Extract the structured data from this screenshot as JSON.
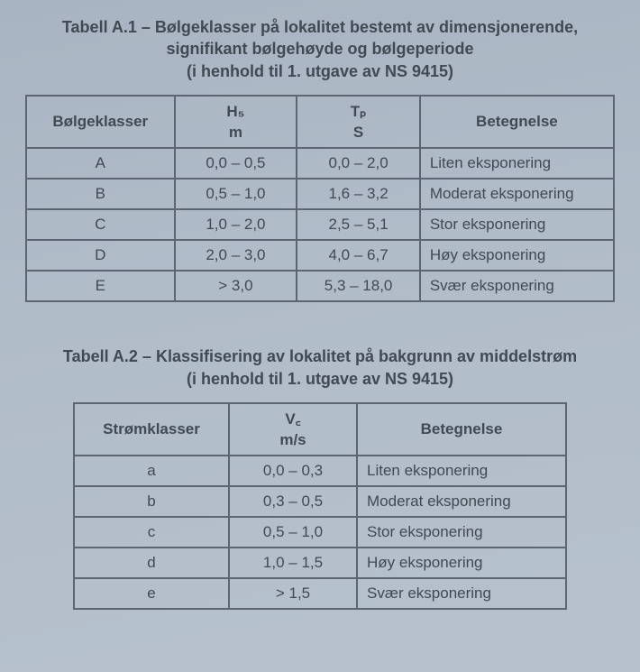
{
  "table1": {
    "title_l1": "Tabell A.1 – Bølgeklasser på lokalitet bestemt av dimensjonerende,",
    "title_l2": "signifikant bølgehøyde og bølgeperiode",
    "title_l3": "(i henhold til 1. utgave av NS 9415)",
    "headers": {
      "c1": "Bølgeklasser",
      "c2_top": "H₅",
      "c2_bot": "m",
      "c3_top": "Tₚ",
      "c3_bot": "S",
      "c4": "Betegnelse"
    },
    "rows": [
      {
        "klass": "A",
        "hs": "0,0 – 0,5",
        "tp": "0,0 – 2,0",
        "bet": "Liten eksponering"
      },
      {
        "klass": "B",
        "hs": "0,5 – 1,0",
        "tp": "1,6 – 3,2",
        "bet": "Moderat eksponering"
      },
      {
        "klass": "C",
        "hs": "1,0 – 2,0",
        "tp": "2,5 – 5,1",
        "bet": "Stor eksponering"
      },
      {
        "klass": "D",
        "hs": "2,0 – 3,0",
        "tp": "4,0 – 6,7",
        "bet": "Høy eksponering"
      },
      {
        "klass": "E",
        "hs": "> 3,0",
        "tp": "5,3 – 18,0",
        "bet": "Svær eksponering"
      }
    ]
  },
  "table2": {
    "title_l1": "Tabell A.2 – Klassifisering av lokalitet på bakgrunn av middelstrøm",
    "title_l2": "(i henhold til 1. utgave av NS 9415)",
    "headers": {
      "c1": "Strømklasser",
      "c2_top": "V꜀",
      "c2_bot": "m/s",
      "c3": "Betegnelse"
    },
    "rows": [
      {
        "klass": "a",
        "vc": "0,0 – 0,3",
        "bet": "Liten eksponering"
      },
      {
        "klass": "b",
        "vc": "0,3 – 0,5",
        "bet": "Moderat eksponering"
      },
      {
        "klass": "c",
        "vc": "0,5 – 1,0",
        "bet": "Stor eksponering"
      },
      {
        "klass": "d",
        "vc": "1,0 – 1,5",
        "bet": "Høy eksponering"
      },
      {
        "klass": "e",
        "vc": "> 1,5",
        "bet": "Svær eksponering"
      }
    ]
  }
}
